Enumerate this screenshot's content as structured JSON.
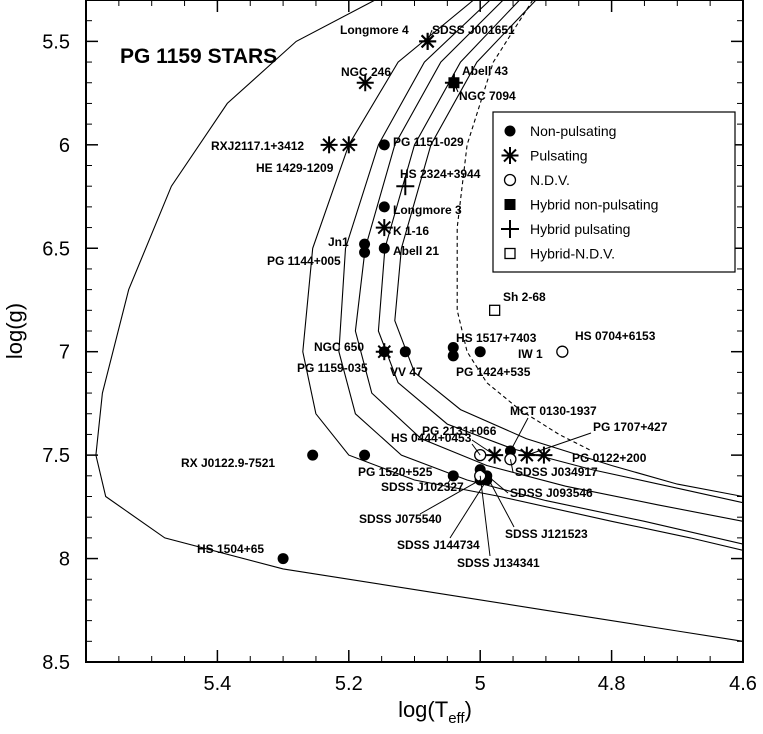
{
  "chart_data": {
    "type": "scatter",
    "title": "PG 1159 STARS",
    "xlabel_main": "log(T",
    "xlabel_sub": "eff",
    "xlabel_close": ")",
    "ylabel": "log(g)",
    "xlim": [
      5.6,
      4.6
    ],
    "ylim": [
      5.3,
      8.5
    ],
    "x_inverted": true,
    "y_inverted": true,
    "xticks": [
      5.4,
      5.2,
      5,
      4.8,
      4.6
    ],
    "xtick_labels": [
      "5.4",
      "5.2",
      "5",
      "4.8",
      "4.6"
    ],
    "yticks": [
      5.5,
      6,
      6.5,
      7,
      7.5,
      8,
      8.5
    ],
    "ytick_labels": [
      "5.5",
      "6",
      "6.5",
      "7",
      "7.5",
      "8",
      "8.5"
    ],
    "legend": {
      "position": "top-right",
      "entries": [
        {
          "key": "non_pulsating",
          "label": "Non-pulsating"
        },
        {
          "key": "pulsating",
          "label": "Pulsating"
        },
        {
          "key": "ndv",
          "label": "N.D.V."
        },
        {
          "key": "hybrid_non_pulsating",
          "label": "Hybrid non-pulsating"
        },
        {
          "key": "hybrid_pulsating",
          "label": "Hybrid pulsating"
        },
        {
          "key": "hybrid_ndv",
          "label": "Hybrid-N.D.V."
        }
      ]
    },
    "points": [
      {
        "name": "Longmore 4",
        "x": 5.08,
        "y": 5.5,
        "type": "pulsating"
      },
      {
        "name": "SDSS J001651",
        "x": 5.08,
        "y": 5.5,
        "type": "pulsating"
      },
      {
        "name": "NGC 246",
        "x": 5.175,
        "y": 5.7,
        "type": "pulsating"
      },
      {
        "name": "Abell 43",
        "x": 5.04,
        "y": 5.7,
        "type": "hybrid_non_pulsating"
      },
      {
        "name": "NGC 7094",
        "x": 5.04,
        "y": 5.7,
        "type": "hybrid_pulsating"
      },
      {
        "name": "RXJ2117.1+3412",
        "x": 5.23,
        "y": 6.0,
        "type": "pulsating"
      },
      {
        "name": "HE 1429-1209",
        "x": 5.2,
        "y": 6.0,
        "type": "pulsating"
      },
      {
        "name": "PG 1151-029",
        "x": 5.146,
        "y": 6.0,
        "type": "non_pulsating"
      },
      {
        "name": "HS 2324+3944",
        "x": 5.114,
        "y": 6.2,
        "type": "hybrid_pulsating"
      },
      {
        "name": "Longmore 3",
        "x": 5.146,
        "y": 6.3,
        "type": "non_pulsating"
      },
      {
        "name": "K 1-16",
        "x": 5.146,
        "y": 6.4,
        "type": "pulsating"
      },
      {
        "name": "Jn1",
        "x": 5.176,
        "y": 6.48,
        "type": "non_pulsating"
      },
      {
        "name": "PG 1144+005",
        "x": 5.176,
        "y": 6.52,
        "type": "non_pulsating"
      },
      {
        "name": "Abell 21",
        "x": 5.146,
        "y": 6.5,
        "type": "non_pulsating"
      },
      {
        "name": "Sh 2-68",
        "x": 4.978,
        "y": 6.8,
        "type": "hybrid_ndv"
      },
      {
        "name": "NGC 650",
        "x": 5.146,
        "y": 7.0,
        "type": "non_pulsating"
      },
      {
        "name": "PG 1159-035",
        "x": 5.146,
        "y": 7.0,
        "type": "pulsating"
      },
      {
        "name": "VV 47",
        "x": 5.114,
        "y": 7.0,
        "type": "non_pulsating"
      },
      {
        "name": "HS 1517+7403",
        "x": 5.041,
        "y": 6.98,
        "type": "non_pulsating"
      },
      {
        "name": "PG 1424+535",
        "x": 5.041,
        "y": 7.02,
        "type": "non_pulsating"
      },
      {
        "name": "IW 1",
        "x": 5.0,
        "y": 7.0,
        "type": "non_pulsating"
      },
      {
        "name": "HS 0704+6153",
        "x": 4.875,
        "y": 7.0,
        "type": "ndv"
      },
      {
        "name": "MCT 0130-1937",
        "x": 4.954,
        "y": 7.48,
        "type": "non_pulsating"
      },
      {
        "name": "PG 2131+066",
        "x": 4.978,
        "y": 7.5,
        "type": "pulsating"
      },
      {
        "name": "PG 1707+427",
        "x": 4.929,
        "y": 7.5,
        "type": "pulsating"
      },
      {
        "name": "PG 0122+200",
        "x": 4.903,
        "y": 7.5,
        "type": "pulsating"
      },
      {
        "name": "HS 0444+0453",
        "x": 5.0,
        "y": 7.5,
        "type": "ndv"
      },
      {
        "name": "SDSS J034917",
        "x": 4.954,
        "y": 7.52,
        "type": "ndv"
      },
      {
        "name": "SDSS J093546",
        "x": 5.0,
        "y": 7.57,
        "type": "non_pulsating"
      },
      {
        "name": "RX J0122.9-7521",
        "x": 5.255,
        "y": 7.5,
        "type": "non_pulsating"
      },
      {
        "name": "PG 1520+525",
        "x": 5.176,
        "y": 7.5,
        "type": "non_pulsating"
      },
      {
        "name": "SDSS J102327",
        "x": 5.041,
        "y": 7.6,
        "type": "non_pulsating"
      },
      {
        "name": "SDSS J075540",
        "x": 5.0,
        "y": 7.62,
        "type": "non_pulsating"
      },
      {
        "name": "SDSS J144734",
        "x": 4.99,
        "y": 7.62,
        "type": "non_pulsating"
      },
      {
        "name": "SDSS J134341",
        "x": 5.0,
        "y": 7.6,
        "type": "ndv"
      },
      {
        "name": "SDSS J121523",
        "x": 4.99,
        "y": 7.6,
        "type": "non_pulsating"
      },
      {
        "name": "HS 1504+65",
        "x": 5.3,
        "y": 8.0,
        "type": "non_pulsating"
      }
    ],
    "label_text": {
      "Longmore 4": "Longmore 4",
      "SDSS J001651": "SDSS J001651",
      "NGC 246": "NGC 246",
      "Abell 43": "Abell 43",
      "NGC 7094": "NGC 7094",
      "RXJ2117.1+3412": "RXJ2117.1+3412",
      "HE 1429-1209": "HE 1429-1209",
      "PG 1151-029": "PG 1151-029",
      "HS 2324+3944": "HS 2324+3944",
      "Longmore 3": "Longmore 3",
      "K 1-16": "K 1-16",
      "Jn1": "Jn1",
      "PG 1144+005": "PG  1144+005",
      "Abell 21": "Abell 21",
      "Sh 2-68": "Sh 2-68",
      "NGC 650": "NGC 650",
      "PG 1159-035": "PG 1159-035",
      "VV 47": "VV 47",
      "HS 1517+7403": "HS 1517+7403",
      "PG 1424+535": "PG 1424+535",
      "IW 1": "IW 1",
      "HS 0704+6153": "HS 0704+6153",
      "MCT 0130-1937": "MCT 0130-1937",
      "PG 2131+066": "PG 2131+066",
      "PG 1707+427": "PG 1707+427",
      "PG 0122+200": "PG 0122+200",
      "HS 0444+0453": "HS 0444+0453",
      "SDSS J034917": "SDSS J034917",
      "SDSS J093546": "SDSS J093546",
      "RX J0122.9-7521": "RX J0122.9-7521",
      "PG 1520+525": "PG 1520+525",
      "SDSS J102327": "SDSS J102327",
      "SDSS J075540": "SDSS J075540",
      "SDSS J144734": "SDSS J144734",
      "SDSS J134341": "SDSS J134341",
      "SDSS J121523": "SDSS J121523",
      "HS 1504+65": "HS 1504+65"
    },
    "tracks": [
      {
        "name": "track-1",
        "style": "solid",
        "points": [
          [
            5.16,
            5.3
          ],
          [
            5.28,
            5.5
          ],
          [
            5.385,
            5.8
          ],
          [
            5.47,
            6.2
          ],
          [
            5.535,
            6.7
          ],
          [
            5.575,
            7.2
          ],
          [
            5.585,
            7.5
          ],
          [
            5.57,
            7.7
          ],
          [
            5.48,
            7.9
          ],
          [
            5.3,
            8.05
          ],
          [
            5.1,
            8.15
          ],
          [
            4.9,
            8.25
          ],
          [
            4.7,
            8.35
          ],
          [
            4.6,
            8.4
          ]
        ]
      },
      {
        "name": "track-2",
        "style": "solid",
        "points": [
          [
            5.01,
            5.3
          ],
          [
            5.125,
            5.6
          ],
          [
            5.2,
            6.0
          ],
          [
            5.255,
            6.5
          ],
          [
            5.27,
            7.0
          ],
          [
            5.25,
            7.3
          ],
          [
            5.2,
            7.5
          ],
          [
            5.1,
            7.62
          ],
          [
            4.97,
            7.7
          ],
          [
            4.8,
            7.82
          ],
          [
            4.68,
            7.9
          ],
          [
            4.6,
            7.96
          ]
        ]
      },
      {
        "name": "track-3",
        "style": "solid",
        "points": [
          [
            4.985,
            5.3
          ],
          [
            5.085,
            5.6
          ],
          [
            5.155,
            6.0
          ],
          [
            5.205,
            6.5
          ],
          [
            5.215,
            7.0
          ],
          [
            5.19,
            7.3
          ],
          [
            5.12,
            7.5
          ],
          [
            5.02,
            7.62
          ],
          [
            4.9,
            7.72
          ],
          [
            4.75,
            7.82
          ],
          [
            4.6,
            7.93
          ]
        ]
      },
      {
        "name": "track-4",
        "style": "solid",
        "points": [
          [
            4.965,
            5.3
          ],
          [
            5.06,
            5.6
          ],
          [
            5.13,
            6.0
          ],
          [
            5.175,
            6.5
          ],
          [
            5.19,
            6.9
          ],
          [
            5.165,
            7.2
          ],
          [
            5.09,
            7.42
          ],
          [
            4.99,
            7.55
          ],
          [
            4.87,
            7.65
          ],
          [
            4.73,
            7.74
          ],
          [
            4.6,
            7.82
          ]
        ]
      },
      {
        "name": "track-5",
        "style": "solid",
        "points": [
          [
            4.94,
            5.3
          ],
          [
            5.03,
            5.6
          ],
          [
            5.1,
            6.0
          ],
          [
            5.145,
            6.5
          ],
          [
            5.155,
            6.9
          ],
          [
            5.125,
            7.15
          ],
          [
            5.05,
            7.35
          ],
          [
            4.95,
            7.47
          ],
          [
            4.83,
            7.57
          ],
          [
            4.7,
            7.66
          ],
          [
            4.6,
            7.73
          ]
        ]
      },
      {
        "name": "track-6",
        "style": "solid",
        "points": [
          [
            4.915,
            5.3
          ],
          [
            5.005,
            5.6
          ],
          [
            5.075,
            6.0
          ],
          [
            5.12,
            6.5
          ],
          [
            5.13,
            6.85
          ],
          [
            5.1,
            7.1
          ],
          [
            5.03,
            7.28
          ],
          [
            4.93,
            7.42
          ],
          [
            4.8,
            7.55
          ],
          [
            4.7,
            7.64
          ],
          [
            4.6,
            7.7
          ]
        ]
      },
      {
        "name": "track-7",
        "style": "dashed",
        "points": [
          [
            4.92,
            5.3
          ],
          [
            4.98,
            5.6
          ],
          [
            5.02,
            6.0
          ],
          [
            5.035,
            6.4
          ],
          [
            5.035,
            6.8
          ],
          [
            5.02,
            7.0
          ],
          [
            4.99,
            7.15
          ],
          [
            4.94,
            7.28
          ],
          [
            4.88,
            7.4
          ],
          [
            4.83,
            7.48
          ]
        ]
      }
    ]
  }
}
